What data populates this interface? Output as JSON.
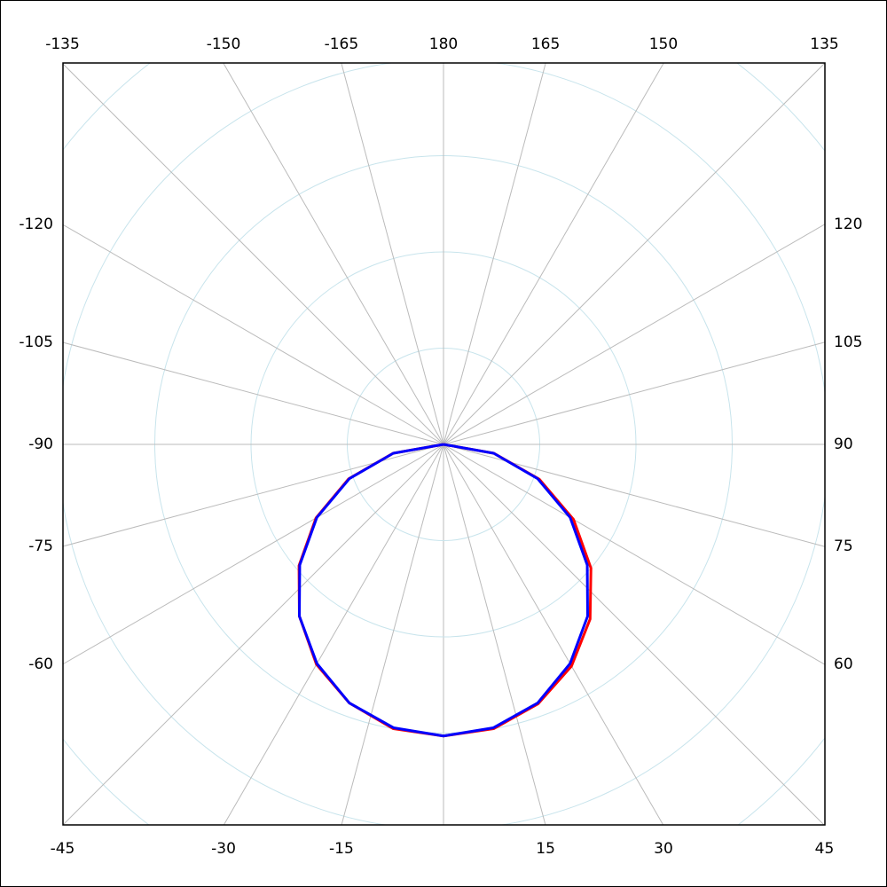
{
  "chart_data": {
    "type": "polar",
    "x": [
      -90,
      -80,
      -70,
      -60,
      -50,
      -40,
      -30,
      -20,
      -10,
      0,
      10,
      20,
      30,
      40,
      50,
      60,
      70,
      80,
      90
    ],
    "series": [
      {
        "color": "#ff0000",
        "values": [
          0,
          0.53,
          1.05,
          1.53,
          1.96,
          2.33,
          2.64,
          2.86,
          3.0,
          3.03,
          3.0,
          2.87,
          2.66,
          2.37,
          2.0,
          1.56,
          1.06,
          0.53,
          0
        ]
      },
      {
        "color": "#0000ff",
        "values": [
          0,
          0.53,
          1.04,
          1.52,
          1.95,
          2.33,
          2.63,
          2.86,
          2.99,
          3.03,
          2.99,
          2.86,
          2.63,
          2.33,
          1.95,
          1.52,
          1.04,
          0.53,
          0
        ]
      }
    ],
    "rlim": [
      0,
      5
    ],
    "rticks": [
      1,
      2,
      3,
      4,
      5
    ],
    "thetaticks": [
      -165,
      -150,
      -135,
      -120,
      -105,
      -90,
      -75,
      -60,
      -45,
      -30,
      -15,
      15,
      30,
      45,
      60,
      75,
      90,
      105,
      120,
      135,
      150,
      165,
      180
    ],
    "grid": true
  }
}
